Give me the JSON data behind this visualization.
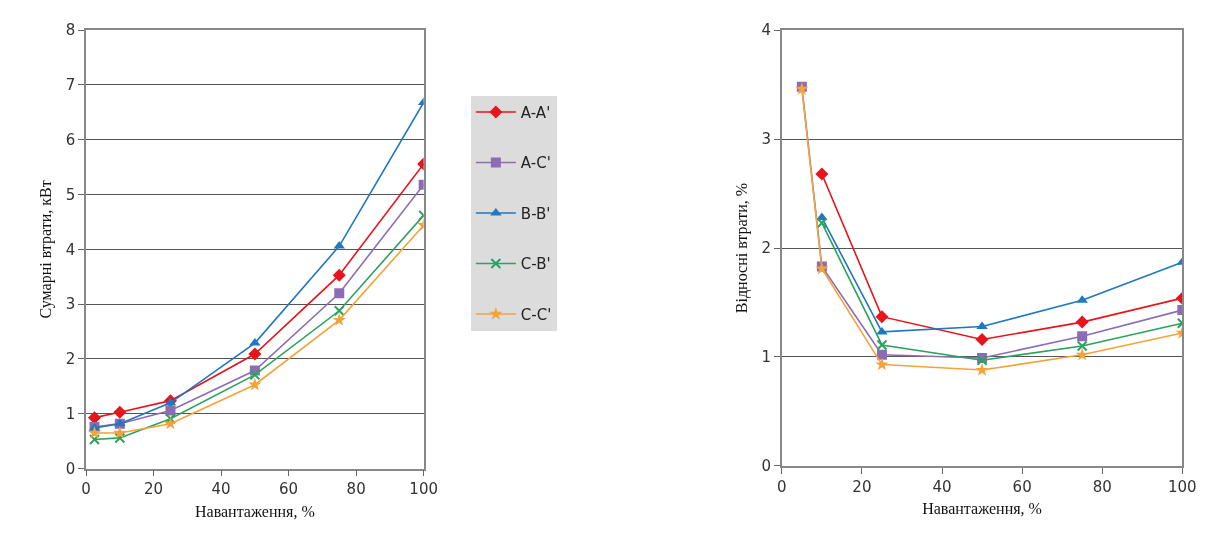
{
  "chart_data": [
    {
      "type": "line",
      "xlabel": "Навантаження, %",
      "ylabel": "Сумарні втрати, кВт",
      "x": [
        2.5,
        10,
        25,
        50,
        75,
        100
      ],
      "xlim": [
        0,
        100
      ],
      "xticks": [
        0,
        20,
        40,
        60,
        80,
        100
      ],
      "ylim": [
        0,
        8
      ],
      "yticks": [
        0,
        1,
        2,
        3,
        4,
        5,
        6,
        7,
        8
      ],
      "grid": "y",
      "legend": "right",
      "series": [
        {
          "name": "A-A'",
          "color": "#e8141c",
          "marker": "diamond",
          "values": [
            0.93,
            1.03,
            1.24,
            2.09,
            3.53,
            5.56
          ]
        },
        {
          "name": "A-C'",
          "color": "#8e6bb5",
          "marker": "square",
          "values": [
            0.76,
            0.82,
            1.06,
            1.79,
            3.2,
            5.18
          ]
        },
        {
          "name": "B-B'",
          "color": "#1f78c1",
          "marker": "triangle",
          "values": [
            0.74,
            0.82,
            1.2,
            2.29,
            4.06,
            6.68
          ]
        },
        {
          "name": "C-B'",
          "color": "#2ca25f",
          "marker": "cross",
          "values": [
            0.53,
            0.56,
            0.91,
            1.71,
            2.88,
            4.62
          ]
        },
        {
          "name": "C-C'",
          "color": "#f4a23a",
          "marker": "star",
          "values": [
            0.65,
            0.65,
            0.82,
            1.53,
            2.71,
            4.44
          ]
        }
      ]
    },
    {
      "type": "line",
      "xlabel": "Навантаження, %",
      "ylabel": "Відносні втрати, %",
      "x": [
        5,
        10,
        25,
        50,
        75,
        100
      ],
      "xlim": [
        0,
        100
      ],
      "xticks": [
        0,
        20,
        40,
        60,
        80,
        100
      ],
      "ylim": [
        0,
        4
      ],
      "yticks": [
        0,
        1,
        2,
        3,
        4
      ],
      "grid": "y",
      "legend": false,
      "series": [
        {
          "color": "#e8141c",
          "marker": "diamond",
          "values": [
            null,
            2.68,
            1.37,
            1.16,
            1.32,
            1.54
          ]
        },
        {
          "color": "#8e6bb5",
          "marker": "square",
          "values": [
            3.48,
            1.83,
            1.02,
            0.99,
            1.19,
            1.43
          ]
        },
        {
          "color": "#1f78c1",
          "marker": "triangle",
          "values": [
            null,
            2.28,
            1.23,
            1.28,
            1.52,
            1.87
          ]
        },
        {
          "color": "#2ca25f",
          "marker": "cross",
          "values": [
            null,
            2.23,
            1.11,
            0.97,
            1.1,
            1.31
          ]
        },
        {
          "color": "#f4a23a",
          "marker": "star",
          "values": [
            3.46,
            1.81,
            0.93,
            0.88,
            1.02,
            1.22
          ]
        }
      ]
    }
  ]
}
